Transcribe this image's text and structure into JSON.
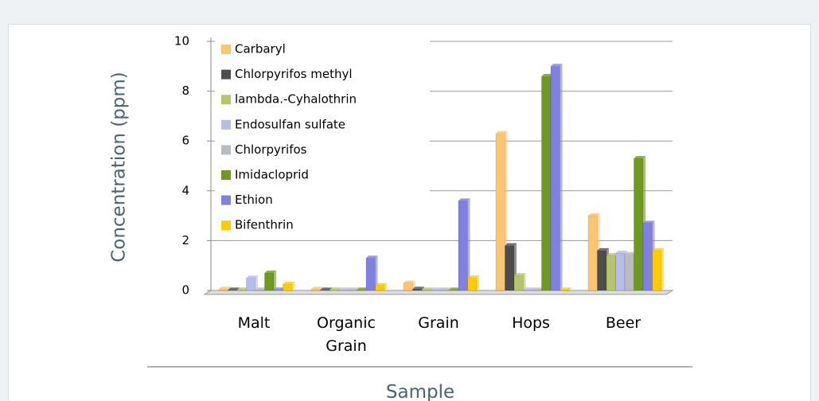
{
  "chart_data": {
    "type": "bar",
    "x_label": "Sample",
    "y_label": "Concentration (ppm)",
    "categories": [
      "Malt",
      "Organic Grain",
      "Grain",
      "Hops",
      "Beer"
    ],
    "series": [
      {
        "name": "Carbaryl",
        "color": "#fdc66e",
        "values": [
          0.05,
          0.05,
          0.3,
          6.3,
          3.0
        ]
      },
      {
        "name": "Chlorpyrifos methyl",
        "color": "#4d4d4d",
        "values": [
          0.02,
          0.02,
          0.05,
          1.8,
          1.6
        ]
      },
      {
        "name": "lambda.-Cyhalothrin",
        "color": "#b8c46a",
        "values": [
          0.02,
          0.02,
          0.02,
          0.6,
          1.4
        ]
      },
      {
        "name": "Endosulfan sulfate",
        "color": "#b8bce8",
        "values": [
          0.5,
          0.02,
          0.02,
          0.02,
          1.5
        ]
      },
      {
        "name": "Chlorpyrifos",
        "color": "#b8bcbe",
        "values": [
          0.02,
          0.02,
          0.02,
          0.02,
          1.45
        ]
      },
      {
        "name": "Imidacloprid",
        "color": "#6f9a1e",
        "values": [
          0.7,
          0.02,
          0.02,
          8.6,
          5.3
        ]
      },
      {
        "name": "Ethion",
        "color": "#8080e0",
        "values": [
          0.02,
          1.3,
          3.6,
          9.0,
          2.7
        ]
      },
      {
        "name": "Bifenthrin",
        "color": "#ffcc00",
        "values": [
          0.25,
          0.2,
          0.5,
          0.02,
          1.6
        ]
      }
    ],
    "ylim": [
      0,
      10
    ],
    "yticks": [
      0,
      2,
      4,
      6,
      8,
      10
    ],
    "grid": true,
    "legend": "top-left"
  }
}
